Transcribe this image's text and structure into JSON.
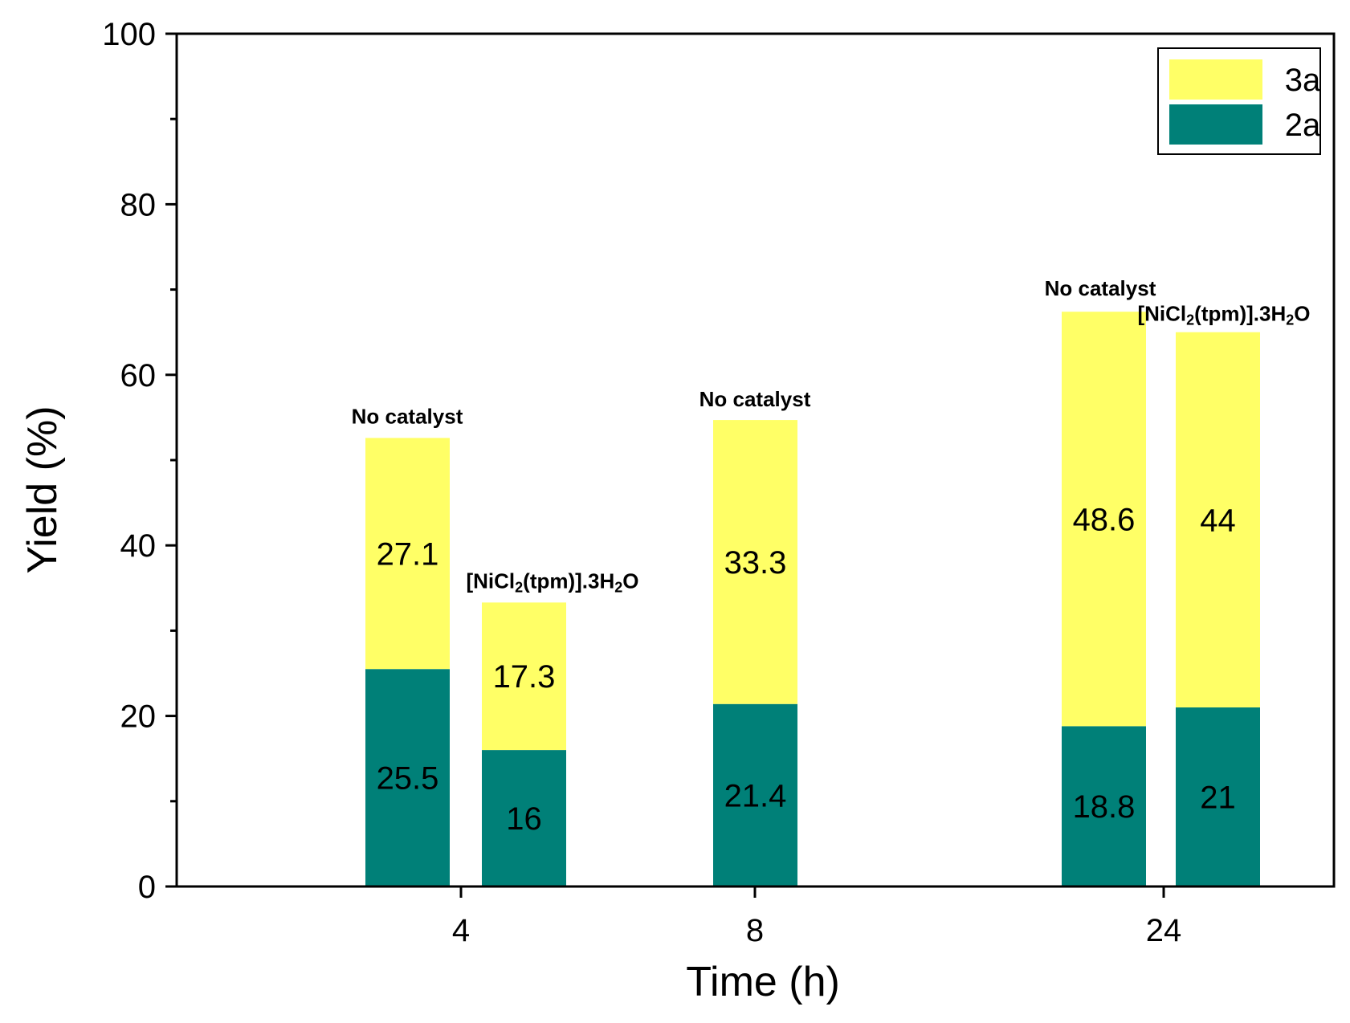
{
  "chart_data": {
    "type": "bar",
    "stacked": true,
    "title": "",
    "xlabel": "Time (h)",
    "ylabel": "Yield (%)",
    "ylim": [
      0,
      100
    ],
    "yticks": [
      0,
      20,
      40,
      60,
      80,
      100
    ],
    "x_ticks": [
      "4",
      "8",
      "24"
    ],
    "legend": {
      "placement": "top-right",
      "entries": [
        {
          "name": "3a",
          "color": "#ffff66"
        },
        {
          "name": "2a",
          "color": "#008078"
        }
      ]
    },
    "series": [
      {
        "name": "2a",
        "color": "#008078"
      },
      {
        "name": "3a",
        "color": "#ffff66"
      }
    ],
    "bars": [
      {
        "time": "4",
        "condition": "No catalyst",
        "values": {
          "2a": 25.5,
          "3a": 27.1
        }
      },
      {
        "time": "4",
        "condition": "[NiCl2(tpm)].3H2O",
        "values": {
          "2a": 16,
          "3a": 17.3
        }
      },
      {
        "time": "8",
        "condition": "No catalyst",
        "values": {
          "2a": 21.4,
          "3a": 33.3
        }
      },
      {
        "time": "24",
        "condition": "No catalyst",
        "values": {
          "2a": 18.8,
          "3a": 48.6
        }
      },
      {
        "time": "24",
        "condition": "[NiCl2(tpm)].3H2O",
        "values": {
          "2a": 21,
          "3a": 44
        }
      }
    ],
    "annotations": {
      "no_catalyst": "No catalyst",
      "catalyst": {
        "prefix": "[NiCl",
        "sub1": "2",
        "middle": "(tpm)].3H",
        "sub2": "2",
        "suffix": "O"
      }
    }
  }
}
